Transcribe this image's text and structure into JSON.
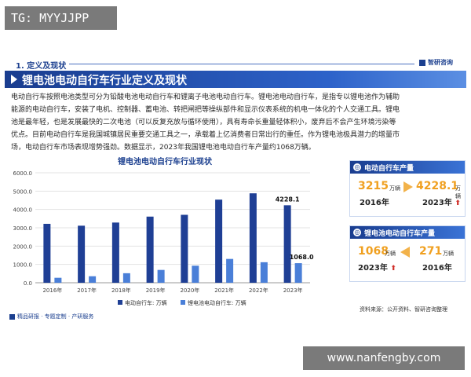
{
  "watermark_tag": "TG: MYYJJPP",
  "section": {
    "label": "1. 定义及现状",
    "logo": "智研咨询"
  },
  "title": "锂电池电动自行车行业定义及现状",
  "body_lines": [
    "电动自行车按照电池类型可分为铅酸电池电动自行车和锂离子电池电动自行车。锂电池电动自行车，是指专以锂电池作为辅助",
    "能源的电动自行车，安装了电机、控制器、蓄电池、转把闸把等操纵部件和显示仪表系统的机电一体化的个人交通工具。锂电",
    "池是最年轻，也是发展最快的二次电池（可以反复充放与循环使用），具有寿命长重量轻体积小，废弃后不会产生环境污染等",
    "优点。目前电动自行车是我国城镇居民重要交通工具之一，承载着上亿消费者日常出行的重任。作为锂电池极具潜力的增量市",
    "场，电动自行车市场表现增势强劲。数据显示，2023年我国锂电池电动自行车产量约1068万辆。"
  ],
  "chart_data": {
    "type": "bar",
    "title": "锂电池电动自行车行业现状",
    "categories": [
      "2016年",
      "2017年",
      "2018年",
      "2019年",
      "2020年",
      "2021年",
      "2022年",
      "2023年"
    ],
    "series": [
      {
        "name": "电动自行车: 万辆",
        "color": "#1f3f95",
        "values": [
          3215,
          3113,
          3285,
          3609,
          3707,
          4536,
          4880,
          4228.1
        ]
      },
      {
        "name": "锂电池电动自行车: 万辆",
        "color": "#4a7fd8",
        "values": [
          271,
          355,
          520,
          700,
          930,
          1300,
          1120,
          1068
        ]
      }
    ],
    "yticks": [
      "0.0",
      "1000.0",
      "2000.0",
      "3000.0",
      "4000.0",
      "5000.0",
      "6000.0"
    ],
    "ylim": [
      0,
      6000
    ],
    "data_labels": {
      "e_bike_2023": "4228.1",
      "lithium_2023": "1068.0"
    }
  },
  "cards": {
    "ebike": {
      "title": "电动自行车产量",
      "from_value": "3215",
      "from_unit": "万辆",
      "from_year": "2016年",
      "to_value": "4228.1",
      "to_unit": "万辆",
      "to_year": "2023年"
    },
    "lithium": {
      "title": "锂电池电动自行车产量",
      "from_value": "1068",
      "from_unit": "万辆",
      "from_year": "2023年",
      "to_value": "271",
      "to_unit": "万辆",
      "to_year": "2016年"
    },
    "up_glyph": "⬆",
    "colors": {
      "accent": "#f0a020",
      "up": "#d0302a"
    }
  },
  "footer": {
    "left": "精品研报 · 专题定制 · 产研服务",
    "right": "资料来源：公开资料、智研咨询整理"
  },
  "url_tag": "www.nanfengby.com"
}
